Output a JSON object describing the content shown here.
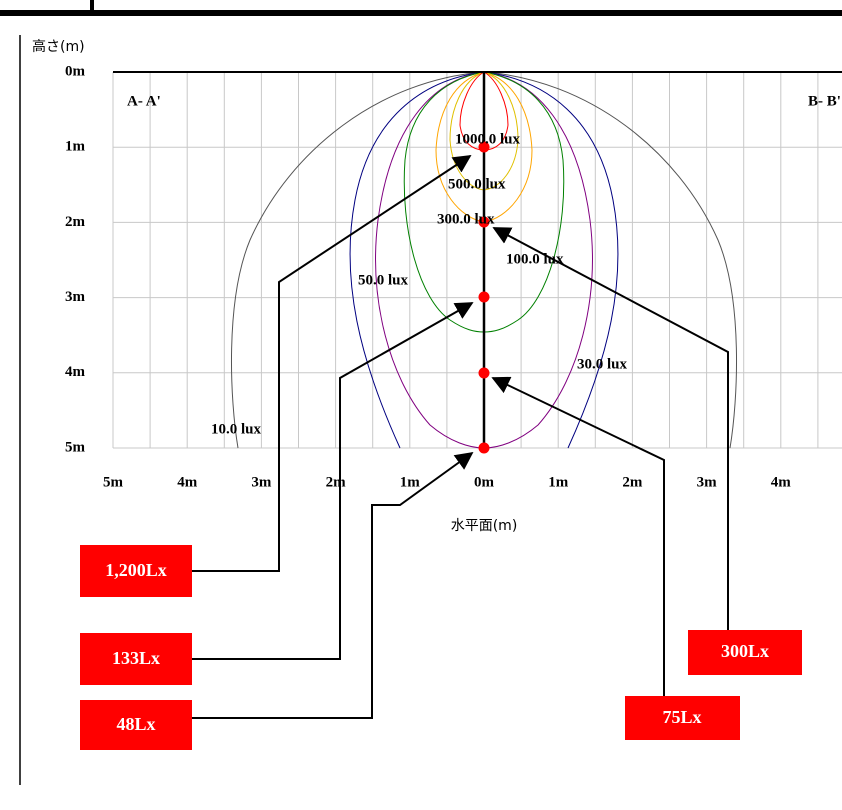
{
  "diagram": {
    "y_axis_title": "高さ(m)",
    "x_axis_title": "水平面(m)",
    "y_ticks": [
      "0m",
      "1m",
      "2m",
      "3m",
      "4m",
      "5m"
    ],
    "x_ticks": [
      "5m",
      "4m",
      "3m",
      "2m",
      "1m",
      "0m",
      "1m",
      "2m",
      "3m",
      "4m",
      "5m"
    ],
    "section_left": "A- A'",
    "section_right": "B- B'",
    "contour_labels": [
      "1000.0 lux",
      "500.0 lux",
      "300.0 lux",
      "100.0 lux",
      "50.0 lux",
      "30.0 lux",
      "10.0 lux"
    ],
    "callouts": [
      "1,200Lx",
      "133Lx",
      "48Lx",
      "75Lx",
      "300Lx"
    ]
  }
}
